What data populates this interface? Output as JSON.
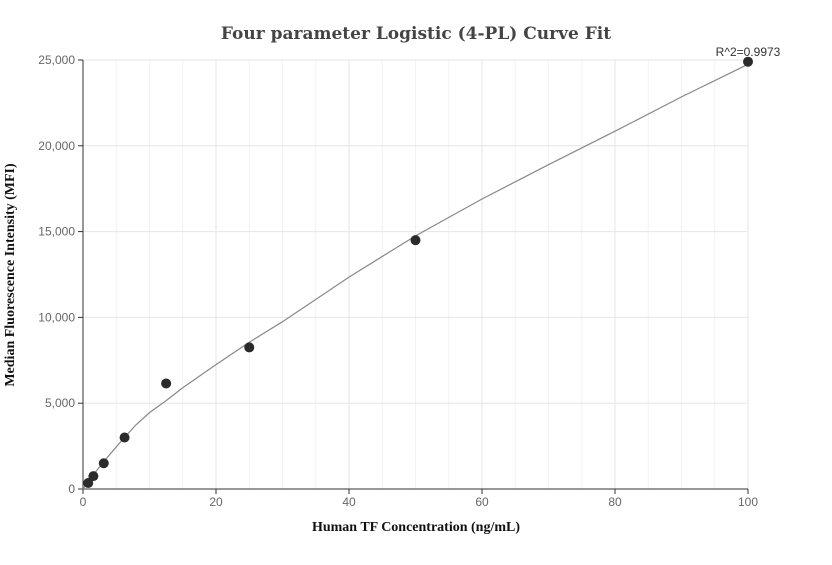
{
  "chart_data": {
    "type": "scatter",
    "title": "Four parameter Logistic (4-PL) Curve Fit",
    "xlabel": "Human TF Concentration (ng/mL)",
    "ylabel": "Median Fluorescence Intensity (MFI)",
    "xlim": [
      0,
      100
    ],
    "ylim": [
      0,
      25000
    ],
    "x_ticks": [
      0,
      20,
      40,
      60,
      80,
      100
    ],
    "y_ticks": [
      0,
      5000,
      10000,
      15000,
      20000,
      25000
    ],
    "x_tick_labels": [
      "0",
      "20",
      "40",
      "60",
      "80",
      "100"
    ],
    "y_tick_labels": [
      "0",
      "5,000",
      "10,000",
      "15,000",
      "20,000",
      "25,000"
    ],
    "grid": true,
    "annotation": "R^2=0.9973",
    "points": {
      "x": [
        0.78,
        1.56,
        3.125,
        6.25,
        12.5,
        25,
        50,
        100
      ],
      "y": [
        350,
        750,
        1500,
        3000,
        6150,
        8250,
        14500,
        24900
      ]
    },
    "fit_curve": {
      "x": [
        0,
        1,
        2,
        4,
        6,
        8,
        10,
        12.5,
        15,
        20,
        25,
        30,
        40,
        50,
        60,
        70,
        80,
        90,
        100
      ],
      "y": [
        0,
        550,
        1050,
        2000,
        2900,
        3750,
        4450,
        5150,
        5900,
        7250,
        8550,
        9750,
        12350,
        14750,
        16900,
        18900,
        20850,
        22850,
        24750
      ]
    }
  }
}
